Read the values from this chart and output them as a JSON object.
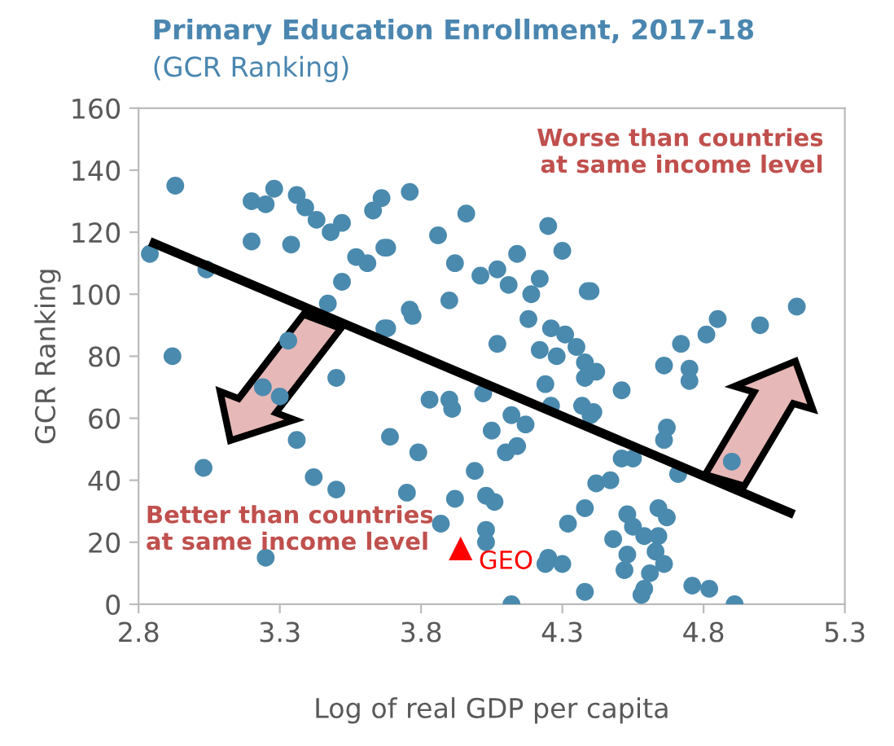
{
  "chart_data": {
    "type": "scatter",
    "title": "Primary Education Enrollment, 2017-18",
    "subtitle": "(GCR Ranking)",
    "xlabel": "Log of real GDP per capita",
    "ylabel": "GCR Ranking",
    "xlim": [
      2.8,
      5.3
    ],
    "xticks": [
      2.8,
      3.3,
      3.8,
      4.3,
      4.8,
      5.3
    ],
    "ylim": [
      0,
      160
    ],
    "yticks": [
      0,
      20,
      40,
      60,
      80,
      100,
      120,
      140,
      160
    ],
    "grid": false,
    "legend": false,
    "marker": "circle",
    "annotations": [
      "Worse than countries\nat same income level",
      "Better than countries\nat same income level"
    ],
    "series": [
      {
        "color": "#4a8aae",
        "x": [
          2.93,
          2.84,
          3.04,
          2.92,
          3.03,
          3.2,
          3.25,
          3.28,
          3.2,
          3.34,
          3.36,
          3.39,
          3.43,
          3.48,
          3.52,
          3.57,
          3.61,
          3.52,
          3.47,
          3.33,
          3.24,
          3.3,
          3.5,
          3.36,
          3.42,
          3.5,
          3.25,
          3.66,
          3.67,
          3.67,
          3.63,
          3.76,
          3.96,
          3.68,
          3.86,
          3.92,
          4.01,
          4.07,
          4.11,
          4.25,
          4.3,
          4.14,
          4.39,
          4.22,
          4.19,
          4.18,
          4.26,
          4.31,
          4.35,
          4.22,
          4.28,
          4.38,
          4.42,
          4.38,
          4.24,
          3.9,
          3.76,
          3.77,
          3.68,
          4.07,
          3.83,
          3.9,
          3.91,
          4.02,
          4.26,
          4.37,
          4.4,
          4.12,
          4.17,
          4.05,
          4.14,
          4.1,
          3.69,
          3.79,
          3.99,
          3.75,
          3.92,
          4.03,
          4.06,
          4.42,
          4.38,
          4.32,
          4.03,
          4.03,
          3.87,
          4.25,
          4.24,
          4.3,
          4.38,
          4.12,
          4.4,
          5.13,
          5.0,
          4.85,
          4.81,
          4.72,
          4.66,
          4.75,
          4.75,
          4.51,
          4.41,
          4.67,
          4.66,
          4.51,
          4.55,
          4.71,
          4.9,
          4.47,
          4.53,
          4.64,
          4.67,
          4.55,
          4.48,
          4.59,
          4.64,
          4.53,
          4.63,
          4.66,
          4.52,
          4.61,
          4.59,
          4.58,
          4.76,
          4.82,
          4.91
        ],
        "values": [
          135,
          113,
          108,
          80,
          44,
          130,
          129,
          134,
          117,
          116,
          132,
          128,
          124,
          120,
          123,
          112,
          110,
          104,
          97,
          85,
          70,
          67,
          73,
          53,
          41,
          37,
          15,
          131,
          115,
          89,
          127,
          133,
          126,
          115,
          119,
          110,
          106,
          108,
          103,
          122,
          114,
          113,
          101,
          105,
          100,
          92,
          89,
          87,
          83,
          82,
          80,
          78,
          75,
          73,
          71,
          98,
          95,
          93,
          89,
          84,
          66,
          66,
          63,
          68,
          64,
          64,
          61,
          61,
          58,
          56,
          51,
          49,
          54,
          49,
          43,
          36,
          34,
          35,
          33,
          39,
          31,
          26,
          24,
          20,
          26,
          15,
          13,
          13,
          4,
          0,
          101,
          96,
          90,
          92,
          87,
          84,
          77,
          76,
          72,
          69,
          62,
          57,
          53,
          47,
          47,
          42,
          46,
          40,
          29,
          31,
          28,
          25,
          21,
          22,
          22,
          16,
          17,
          13,
          11,
          10,
          5,
          3,
          6,
          5,
          0
        ]
      },
      {
        "type": "line",
        "color": "#000000",
        "x": [
          2.84,
          5.12
        ],
        "values": [
          117,
          29
        ],
        "marker": "none"
      },
      {
        "name": "GEO",
        "color": "#ff0000",
        "x": [
          3.94
        ],
        "values": [
          18
        ],
        "marker": "triangle"
      }
    ]
  }
}
